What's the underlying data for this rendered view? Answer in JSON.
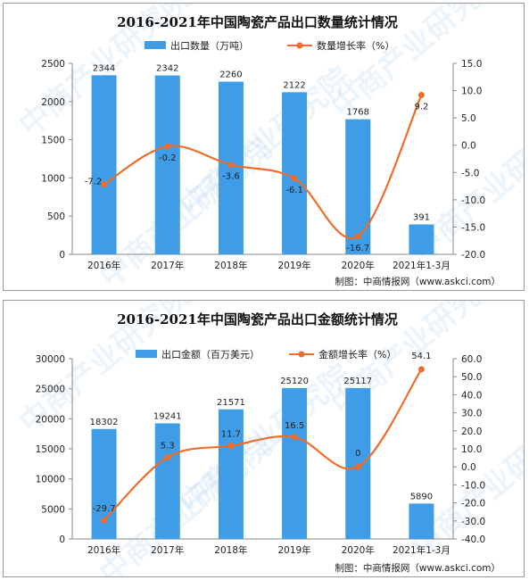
{
  "colors": {
    "bar": "#3f9ce6",
    "line": "#ee6d2a",
    "axis": "#888888",
    "text": "#222222"
  },
  "watermark": "中商产业研究院",
  "chart_data": [
    {
      "type": "bar",
      "title": "2016-2021年中国陶瓷产品出口数量统计情况",
      "categories": [
        "2016年",
        "2017年",
        "2018年",
        "2019年",
        "2020年",
        "2021年1-3月"
      ],
      "series": [
        {
          "name": "出口数量（万吨）",
          "type": "bar",
          "axis": "left",
          "values": [
            2344,
            2342,
            2260,
            2122,
            1768,
            391
          ],
          "labels": [
            "2344",
            "2342",
            "2260",
            "2122",
            "1768",
            "391"
          ]
        },
        {
          "name": "数量增长率（%）",
          "type": "line",
          "axis": "right",
          "values": [
            -7.2,
            -0.2,
            -3.6,
            -6.1,
            -16.7,
            9.2
          ],
          "labels": [
            "-7.2",
            "-0.2",
            "-3.6",
            "-6.1",
            "-16.7",
            "9.2"
          ]
        }
      ],
      "y_left": {
        "min": 0,
        "max": 2500,
        "ticks": [
          "0",
          "500",
          "1000",
          "1500",
          "2000",
          "2500"
        ]
      },
      "y_right": {
        "min": -20,
        "max": 15,
        "ticks": [
          "-20.0",
          "-15.0",
          "-10.0",
          "-5.0",
          "0.0",
          "5.0",
          "10.0",
          "15.0"
        ]
      },
      "legend": "top",
      "grid": false,
      "credit": "制图：中商情报网（www.askci.com）"
    },
    {
      "type": "bar",
      "title": "2016-2021年中国陶瓷产品出口金额统计情况",
      "categories": [
        "2016年",
        "2017年",
        "2018年",
        "2019年",
        "2020年",
        "2021年1-3月"
      ],
      "series": [
        {
          "name": "出口金额（百万美元）",
          "type": "bar",
          "axis": "left",
          "values": [
            18302,
            19241,
            21571,
            25120,
            25117,
            5890
          ],
          "labels": [
            "18302",
            "19241",
            "21571",
            "25120",
            "25117",
            "5890"
          ]
        },
        {
          "name": "金额增长率（%）",
          "type": "line",
          "axis": "right",
          "values": [
            -29.7,
            5.3,
            11.7,
            16.5,
            0,
            54.1
          ],
          "labels": [
            "-29.7",
            "5.3",
            "11.7",
            "16.5",
            "0",
            "54.1"
          ]
        }
      ],
      "y_left": {
        "min": 0,
        "max": 30000,
        "ticks": [
          "0",
          "5000",
          "10000",
          "15000",
          "20000",
          "25000",
          "30000"
        ]
      },
      "y_right": {
        "min": -40,
        "max": 60,
        "ticks": [
          "-40.0",
          "-30.0",
          "-20.0",
          "-10.0",
          "0.0",
          "10.0",
          "20.0",
          "30.0",
          "40.0",
          "50.0",
          "60.0"
        ]
      },
      "legend": "top",
      "grid": false,
      "credit": "制图：中商情报网（www.askci.com）"
    }
  ]
}
